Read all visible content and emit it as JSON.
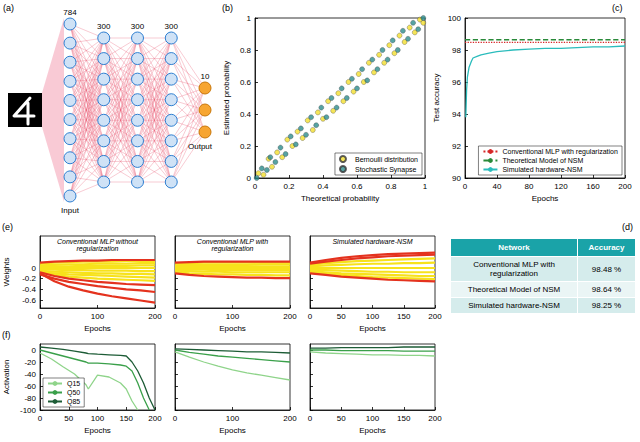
{
  "diagram": {
    "panel": "(a)",
    "layers": [
      {
        "size": 784,
        "label": "Input"
      },
      {
        "size": 300
      },
      {
        "size": 300
      },
      {
        "size": 300
      },
      {
        "size": 10,
        "label": "Output"
      }
    ]
  },
  "chart_data": [
    {
      "panel": "(b)",
      "type": "scatter",
      "xlabel": "Theoretical probability",
      "ylabel": "Estimated probability",
      "xlim": [
        0,
        1
      ],
      "ylim": [
        0,
        1
      ],
      "xticks": [
        0,
        0.2,
        0.4,
        0.6,
        0.8,
        1
      ],
      "yticks": [
        0,
        0.2,
        0.4,
        0.6,
        0.8,
        1
      ],
      "legend": "lower right",
      "marker": "circle",
      "series": [
        {
          "name": "Bernoulli distribution",
          "color": "#f2df2e",
          "x": [
            0.02,
            0.05,
            0.08,
            0.1,
            0.13,
            0.16,
            0.19,
            0.22,
            0.25,
            0.28,
            0.31,
            0.34,
            0.37,
            0.4,
            0.43,
            0.46,
            0.49,
            0.52,
            0.55,
            0.58,
            0.61,
            0.64,
            0.67,
            0.7,
            0.73,
            0.76,
            0.79,
            0.82,
            0.85,
            0.88,
            0.91,
            0.94,
            0.97,
            0.99
          ],
          "values": [
            0.03,
            0.02,
            0.12,
            0.07,
            0.16,
            0.13,
            0.24,
            0.2,
            0.29,
            0.25,
            0.36,
            0.3,
            0.41,
            0.37,
            0.48,
            0.42,
            0.53,
            0.48,
            0.6,
            0.54,
            0.65,
            0.6,
            0.72,
            0.66,
            0.77,
            0.72,
            0.83,
            0.78,
            0.89,
            0.85,
            0.94,
            0.91,
            0.99,
            0.97
          ]
        },
        {
          "name": "Stochastic Synapse",
          "color": "#2d8c8c",
          "x": [
            0.01,
            0.04,
            0.07,
            0.09,
            0.12,
            0.15,
            0.18,
            0.21,
            0.24,
            0.27,
            0.3,
            0.33,
            0.36,
            0.39,
            0.42,
            0.45,
            0.48,
            0.51,
            0.54,
            0.57,
            0.6,
            0.63,
            0.66,
            0.69,
            0.72,
            0.75,
            0.78,
            0.81,
            0.84,
            0.87,
            0.9,
            0.93,
            0.96,
            0.99
          ],
          "values": [
            0,
            0.06,
            0.05,
            0.13,
            0.1,
            0.19,
            0.15,
            0.26,
            0.21,
            0.31,
            0.27,
            0.38,
            0.33,
            0.44,
            0.38,
            0.5,
            0.44,
            0.56,
            0.5,
            0.62,
            0.56,
            0.68,
            0.61,
            0.74,
            0.68,
            0.8,
            0.74,
            0.86,
            0.8,
            0.92,
            0.87,
            0.97,
            0.93,
            1
          ]
        }
      ]
    },
    {
      "panel": "(c)",
      "type": "line",
      "xlabel": "Epochs",
      "ylabel": "Test accuracy",
      "xlim": [
        0,
        200
      ],
      "ylim": [
        90,
        100
      ],
      "xticks": [
        0,
        40,
        80,
        120,
        160,
        200
      ],
      "yticks": [
        90,
        92,
        94,
        96,
        98,
        100
      ],
      "legend": "lower right",
      "series": [
        {
          "name": "Conventional MLP with regularization",
          "color": "#d62728",
          "line_style": "dotted",
          "x": [
            0,
            200
          ],
          "values": [
            98.48,
            98.48
          ]
        },
        {
          "name": "Theoretical Model of NSM",
          "color": "#2a8a3a",
          "line_style": "dashed",
          "x": [
            0,
            200
          ],
          "values": [
            98.64,
            98.64
          ]
        },
        {
          "name": "Simulated hardware-NSM",
          "color": "#2bbcbc",
          "line_style": "solid",
          "x": [
            1,
            2,
            3,
            5,
            8,
            10,
            15,
            20,
            30,
            40,
            60,
            80,
            100,
            120,
            140,
            160,
            180,
            200
          ],
          "values": [
            93.8,
            95.5,
            96.3,
            96.9,
            97.3,
            97.5,
            97.6,
            97.7,
            97.8,
            97.9,
            98.0,
            98.05,
            98.1,
            98.1,
            98.15,
            98.2,
            98.2,
            98.25
          ]
        }
      ]
    },
    {
      "panel": "(e)",
      "type": "line",
      "title": "Conventional MLP without regularization",
      "xlabel": "Epochs",
      "ylabel": "Weights",
      "x": [
        0,
        25,
        50,
        75,
        100,
        125,
        150,
        175,
        200
      ],
      "xlim": [
        0,
        200
      ],
      "ylim": [
        -0.75,
        0.6
      ],
      "xticks": [
        0,
        100,
        200
      ],
      "yticks": [
        -0.6,
        -0.4,
        -0.2,
        0
      ],
      "series": [
        {
          "color": "#f7e21b",
          "values": [
            0.08,
            0.1,
            0.11,
            0.12,
            0.12,
            0.12,
            0.13,
            0.13,
            0.13
          ]
        },
        {
          "color": "#f7e21b",
          "values": [
            0.05,
            0.06,
            0.07,
            0.07,
            0.08,
            0.08,
            0.08,
            0.09,
            0.09
          ]
        },
        {
          "color": "#f7e21b",
          "values": [
            0.02,
            0.03,
            0.03,
            0.04,
            0.04,
            0.04,
            0.04,
            0.05,
            0.05
          ]
        },
        {
          "color": "#f7e21b",
          "values": [
            0,
            0,
            0,
            0,
            0,
            0,
            0,
            0,
            0
          ]
        },
        {
          "color": "#f7e21b",
          "values": [
            -0.02,
            -0.03,
            -0.04,
            -0.04,
            -0.05,
            -0.05,
            -0.05,
            -0.06,
            -0.06
          ]
        },
        {
          "color": "#f7e21b",
          "values": [
            -0.05,
            -0.07,
            -0.08,
            -0.09,
            -0.1,
            -0.1,
            -0.11,
            -0.11,
            -0.12
          ]
        },
        {
          "color": "#f7e21b",
          "values": [
            -0.08,
            -0.1,
            -0.12,
            -0.13,
            -0.14,
            -0.15,
            -0.16,
            -0.17,
            -0.18
          ]
        },
        {
          "color": "#f7e21b",
          "values": [
            -0.1,
            -0.13,
            -0.16,
            -0.18,
            -0.2,
            -0.21,
            -0.22,
            -0.23,
            -0.24
          ]
        },
        {
          "color": "#e4321e",
          "values": [
            0.1,
            0.12,
            0.13,
            0.14,
            0.14,
            0.15,
            0.15,
            0.15,
            0.15
          ]
        },
        {
          "color": "#e4321e",
          "values": [
            -0.12,
            -0.2,
            -0.26,
            -0.3,
            -0.34,
            -0.37,
            -0.4,
            -0.42,
            -0.45
          ]
        },
        {
          "color": "#e4321e",
          "values": [
            -0.1,
            -0.25,
            -0.35,
            -0.42,
            -0.48,
            -0.53,
            -0.57,
            -0.61,
            -0.65
          ]
        },
        {
          "color": "#e4321e",
          "values": [
            -0.08,
            -0.15,
            -0.2,
            -0.23,
            -0.26,
            -0.28,
            -0.3,
            -0.31,
            -0.32
          ]
        }
      ]
    },
    {
      "type": "line",
      "title": "Conventional MLP with regularization",
      "xlabel": "Epochs",
      "tick_labels": "x",
      "x": [
        0,
        25,
        50,
        75,
        100,
        125,
        150,
        175,
        200
      ],
      "xlim": [
        0,
        200
      ],
      "ylim": [
        -0.75,
        0.6
      ],
      "xticks": [
        0,
        100,
        200
      ],
      "yticks": [
        -0.6,
        -0.4,
        -0.2,
        0
      ],
      "series": [
        {
          "color": "#f7e21b",
          "values": [
            0.08,
            0.09,
            0.1,
            0.1,
            0.1,
            0.1,
            0.1,
            0.1,
            0.1
          ]
        },
        {
          "color": "#f7e21b",
          "values": [
            0.05,
            0.06,
            0.06,
            0.06,
            0.06,
            0.06,
            0.07,
            0.07,
            0.07
          ]
        },
        {
          "color": "#f7e21b",
          "values": [
            0.02,
            0.03,
            0.03,
            0.03,
            0.03,
            0.03,
            0.03,
            0.03,
            0.03
          ]
        },
        {
          "color": "#f7e21b",
          "values": [
            0,
            0,
            0,
            0,
            0,
            0,
            0,
            0,
            0
          ]
        },
        {
          "color": "#f7e21b",
          "values": [
            -0.02,
            -0.03,
            -0.03,
            -0.04,
            -0.04,
            -0.04,
            -0.04,
            -0.04,
            -0.04
          ]
        },
        {
          "color": "#f7e21b",
          "values": [
            -0.05,
            -0.06,
            -0.07,
            -0.07,
            -0.08,
            -0.08,
            -0.08,
            -0.08,
            -0.08
          ]
        },
        {
          "color": "#f7e21b",
          "values": [
            -0.08,
            -0.1,
            -0.11,
            -0.12,
            -0.12,
            -0.13,
            -0.13,
            -0.14,
            -0.14
          ]
        },
        {
          "color": "#e4321e",
          "values": [
            0.1,
            0.11,
            0.12,
            0.12,
            0.12,
            0.12,
            0.12,
            0.12,
            0.12
          ]
        },
        {
          "color": "#e4321e",
          "values": [
            -0.1,
            -0.13,
            -0.15,
            -0.16,
            -0.17,
            -0.18,
            -0.18,
            -0.19,
            -0.19
          ]
        }
      ]
    },
    {
      "type": "line",
      "title": "Simulated hardware-NSM",
      "xlabel": "Epochs",
      "tick_labels": "x",
      "x": [
        0,
        25,
        50,
        75,
        100,
        125,
        150,
        175,
        200
      ],
      "xlim": [
        0,
        200
      ],
      "ylim": [
        -0.75,
        0.6
      ],
      "xticks": [
        0,
        50,
        100,
        150,
        200
      ],
      "yticks": [
        -0.6,
        -0.4,
        -0.2,
        0
      ],
      "series": [
        {
          "color": "#f7e21b",
          "values": [
            0.06,
            0.09,
            0.11,
            0.13,
            0.14,
            0.15,
            0.16,
            0.17,
            0.18
          ]
        },
        {
          "color": "#f7e21b",
          "values": [
            0.03,
            0.05,
            0.06,
            0.07,
            0.08,
            0.08,
            0.09,
            0.09,
            0.1
          ]
        },
        {
          "color": "#f7e21b",
          "values": [
            0,
            0,
            0,
            0,
            0,
            0,
            0,
            0,
            0
          ]
        },
        {
          "color": "#f7e21b",
          "values": [
            -0.03,
            -0.04,
            -0.05,
            -0.06,
            -0.07,
            -0.07,
            -0.08,
            -0.08,
            -0.08
          ]
        },
        {
          "color": "#f7e21b",
          "values": [
            -0.06,
            -0.08,
            -0.1,
            -0.11,
            -0.12,
            -0.13,
            -0.14,
            -0.15,
            -0.15
          ]
        },
        {
          "color": "#f7e21b",
          "values": [
            -0.08,
            -0.11,
            -0.13,
            -0.15,
            -0.17,
            -0.18,
            -0.19,
            -0.2,
            -0.21
          ]
        },
        {
          "color": "#e4321e",
          "values": [
            0.1,
            0.15,
            0.19,
            0.22,
            0.24,
            0.26,
            0.27,
            0.28,
            0.29
          ]
        },
        {
          "color": "#e4321e",
          "values": [
            -0.1,
            -0.13,
            -0.16,
            -0.18,
            -0.2,
            -0.22,
            -0.23,
            -0.24,
            -0.25
          ]
        },
        {
          "color": "#e4321e",
          "values": [
            0.08,
            0.12,
            0.15,
            0.18,
            0.2,
            0.22,
            0.23,
            0.24,
            0.25
          ]
        }
      ]
    },
    {
      "panel": "(f)",
      "type": "line",
      "xlabel": "Epochs",
      "ylabel": "Activation",
      "legend": "lower left",
      "x": [
        0,
        20,
        40,
        60,
        80,
        84,
        100,
        120,
        140,
        150,
        160,
        170,
        180,
        190,
        200
      ],
      "xlim": [
        0,
        200
      ],
      "ylim": [
        -100,
        10
      ],
      "xticks": [
        0,
        50,
        100,
        150,
        200
      ],
      "yticks": [
        -100,
        -80,
        -60,
        -40,
        -20,
        0
      ],
      "series": [
        {
          "name": "Q15",
          "color": "#8fd48a",
          "values": [
            -5,
            -15,
            -28,
            -40,
            -58,
            -65,
            -42,
            -45,
            -55,
            -65,
            -85,
            -100,
            null,
            null,
            null
          ]
        },
        {
          "name": "Q50",
          "color": "#3aa04a",
          "values": [
            0,
            -5,
            -10,
            -15,
            -20,
            -22,
            -22,
            -23,
            -25,
            -27,
            -35,
            -55,
            -80,
            -100,
            null
          ]
        },
        {
          "name": "Q85",
          "color": "#1d5c36",
          "values": [
            5,
            3,
            1,
            -2,
            -5,
            -6,
            -7,
            -8,
            -9,
            -10,
            -20,
            -35,
            -55,
            -80,
            -100
          ]
        }
      ]
    },
    {
      "type": "line",
      "xlabel": "Epochs",
      "tick_labels": "x",
      "x": [
        0,
        25,
        50,
        75,
        100,
        125,
        150,
        175,
        200
      ],
      "xlim": [
        0,
        200
      ],
      "ylim": [
        -100,
        10
      ],
      "xticks": [
        0,
        100,
        200
      ],
      "yticks": [
        -100,
        -80,
        -60,
        -40,
        -20,
        0
      ],
      "series": [
        {
          "color": "#8fd48a",
          "values": [
            -3,
            -12,
            -20,
            -27,
            -33,
            -38,
            -42,
            -46,
            -50
          ]
        },
        {
          "color": "#3aa04a",
          "values": [
            0,
            -4,
            -7,
            -10,
            -12,
            -14,
            -16,
            -18,
            -20
          ]
        },
        {
          "color": "#1d5c36",
          "values": [
            2,
            1,
            0,
            -1,
            -2,
            -3,
            -3,
            -4,
            -5
          ]
        }
      ]
    },
    {
      "type": "line",
      "xlabel": "Epochs",
      "tick_labels": "x",
      "x": [
        0,
        25,
        50,
        75,
        100,
        125,
        150,
        175,
        200
      ],
      "xlim": [
        0,
        200
      ],
      "ylim": [
        -100,
        10
      ],
      "xticks": [
        0,
        50,
        100,
        150,
        200
      ],
      "yticks": [
        -100,
        -80,
        -60,
        -40,
        -20,
        0
      ],
      "series": [
        {
          "color": "#8fd48a",
          "values": [
            -3,
            -5,
            -6,
            -7,
            -8,
            -8,
            -9,
            -9,
            -10
          ]
        },
        {
          "color": "#3aa04a",
          "values": [
            0,
            0,
            -1,
            -1,
            -1,
            -1,
            -2,
            -2,
            -2
          ]
        },
        {
          "color": "#1d5c36",
          "values": [
            3,
            3,
            4,
            4,
            4,
            4,
            5,
            5,
            5
          ]
        }
      ]
    }
  ],
  "table": {
    "panel": "(d)",
    "header": [
      "Network",
      "Accuracy"
    ],
    "rows": [
      [
        "Conventional MLP with regularization",
        "98.48 %"
      ],
      [
        "Theoretical Model of NSM",
        "98.64 %"
      ],
      [
        "Simulated hardware-NSM",
        "98.25 %"
      ]
    ]
  }
}
